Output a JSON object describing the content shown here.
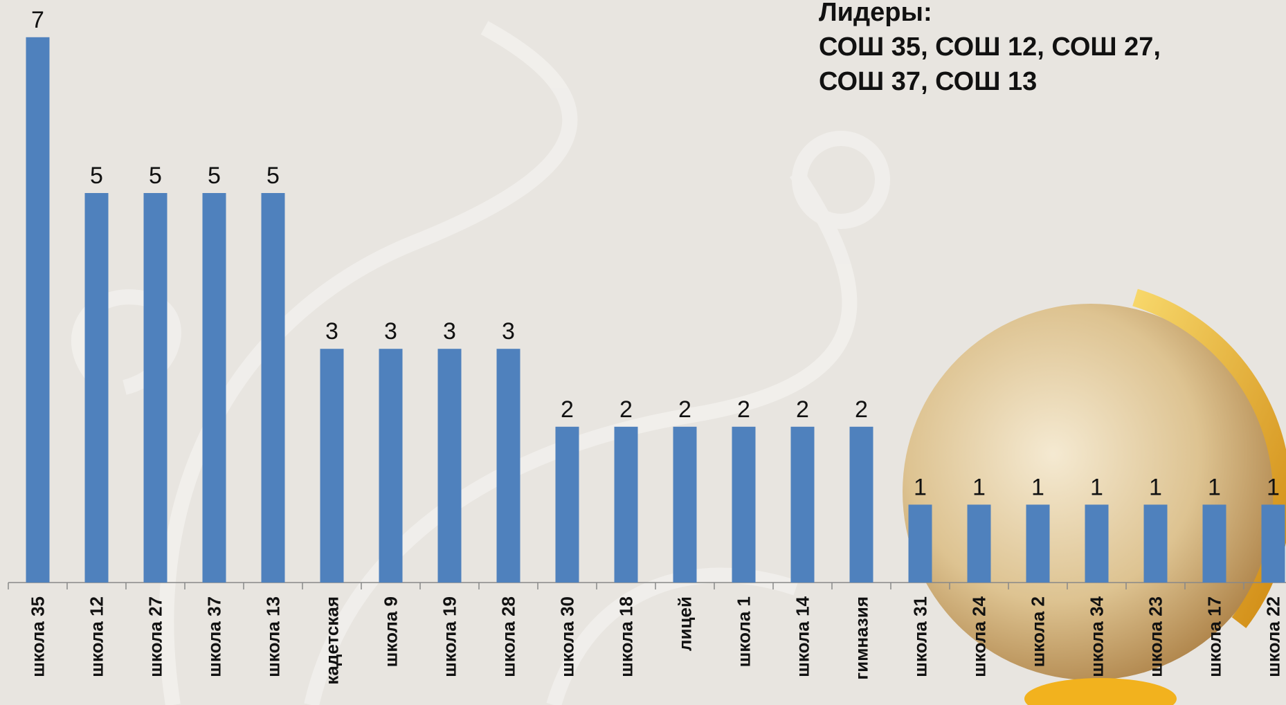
{
  "chart_data": {
    "type": "bar",
    "annotation": [
      "Лидеры:",
      "СОШ 35, СОШ 12, СОШ 27,",
      "СОШ 37, СОШ 13"
    ],
    "categories": [
      "школа 35",
      "школа 12",
      "школа 27",
      "школа 37",
      "школа 13",
      "кадетская",
      "школа 9",
      "школа 19",
      "школа 28",
      "школа 30",
      "школа 18",
      "лицей",
      "школа 1",
      "школа 14",
      "гимназия",
      "школа 31",
      "школа 24",
      "школа 2",
      "школа 34",
      "школа 23",
      "школа 17",
      "школа 22"
    ],
    "values": [
      7,
      5,
      5,
      5,
      5,
      3,
      3,
      3,
      3,
      2,
      2,
      2,
      2,
      2,
      2,
      1,
      1,
      1,
      1,
      1,
      1,
      1
    ],
    "color": "#4f81bd",
    "ylim": [
      0,
      7.4
    ]
  }
}
